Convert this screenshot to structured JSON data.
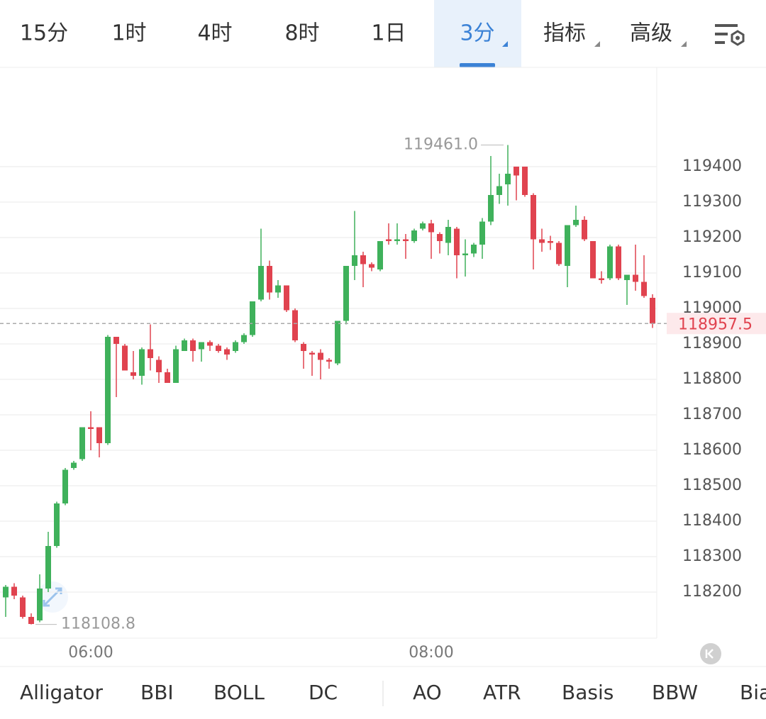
{
  "tabs": [
    "15分",
    "1时",
    "4时",
    "8时",
    "1日",
    "3分",
    "指标",
    "高级"
  ],
  "active_tab": 5,
  "indicators": [
    "Alligator",
    "BBI",
    "BOLL",
    "DC",
    "AO",
    "ATR",
    "Basis",
    "BBW",
    "Bias"
  ],
  "chart_data": {
    "type": "candlestick",
    "up_color": "#3fb15b",
    "down_color": "#e0434f",
    "grid": true,
    "categories": [
      null,
      null,
      null,
      null,
      null,
      null,
      null,
      null,
      null,
      null,
      "06:00",
      null,
      null,
      null,
      null,
      null,
      null,
      null,
      null,
      null,
      null,
      null,
      null,
      null,
      null,
      null,
      null,
      null,
      null,
      null,
      null,
      null,
      null,
      null,
      null,
      null,
      null,
      null,
      null,
      null,
      null,
      null,
      null,
      null,
      null,
      null,
      null,
      null,
      null,
      null,
      "08:00",
      null,
      null,
      null,
      null,
      null,
      null,
      null,
      null,
      null,
      null,
      null,
      null,
      null,
      null,
      null,
      null,
      null,
      null,
      null,
      null,
      null,
      null,
      null,
      null,
      null,
      null
    ],
    "open": [
      118185,
      118215,
      118185,
      118130,
      118120,
      118210,
      118330,
      118450,
      118550,
      118575,
      118665,
      118665,
      118620,
      118920,
      118895,
      118820,
      118810,
      118885,
      118855,
      118820,
      118790,
      118880,
      118910,
      118885,
      118905,
      118895,
      118885,
      118880,
      118905,
      118925,
      119025,
      119120,
      119045,
      119065,
      118995,
      118900,
      118875,
      118875,
      118855,
      118845,
      118965,
      119120,
      119150,
      119125,
      119110,
      119195,
      119190,
      119195,
      119190,
      119225,
      119240,
      119210,
      119185,
      119225,
      119150,
      119155,
      119180,
      119245,
      119320,
      119350,
      119400,
      119400,
      119320,
      119195,
      119190,
      119185,
      119120,
      119235,
      119250,
      119190,
      119085,
      119085,
      119175,
      119080,
      119095,
      119075,
      119030
    ],
    "high": [
      118220,
      118225,
      118190,
      118140,
      118250,
      118370,
      118455,
      118550,
      118570,
      118665,
      118710,
      118665,
      118925,
      118920,
      118900,
      118880,
      118890,
      118955,
      118865,
      118830,
      118895,
      118915,
      118915,
      118905,
      118910,
      118900,
      118890,
      118910,
      118930,
      119020,
      119225,
      119135,
      119080,
      119065,
      119000,
      118905,
      118880,
      118885,
      118860,
      118965,
      119120,
      119275,
      119160,
      119130,
      119190,
      119240,
      119240,
      119210,
      119225,
      119245,
      119250,
      119215,
      119250,
      119230,
      119195,
      119185,
      119255,
      119430,
      119380,
      119461,
      119400,
      119400,
      119325,
      119225,
      119205,
      119190,
      119235,
      119290,
      119260,
      119190,
      119105,
      119180,
      119180,
      119095,
      119180,
      119150,
      119040
    ],
    "low": [
      118130,
      118180,
      118125,
      118108.8,
      118115,
      118200,
      118325,
      118445,
      118545,
      118570,
      118600,
      118580,
      118615,
      118750,
      118825,
      118800,
      118785,
      118825,
      118790,
      118790,
      118790,
      118880,
      118850,
      118850,
      118880,
      118875,
      118855,
      118875,
      118900,
      118920,
      119020,
      119025,
      119030,
      118990,
      118905,
      118830,
      118810,
      118800,
      118830,
      118840,
      118955,
      119080,
      119060,
      119105,
      119105,
      119180,
      119180,
      119140,
      119185,
      119220,
      119140,
      119155,
      119150,
      119085,
      119090,
      119145,
      119140,
      119235,
      119295,
      119290,
      119305,
      119315,
      119110,
      119160,
      119165,
      119120,
      119060,
      119230,
      119190,
      119085,
      119070,
      119080,
      119080,
      119010,
      119050,
      119030,
      118945
    ],
    "close": [
      118215,
      118190,
      118130,
      118110,
      118210,
      118330,
      118450,
      118545,
      118565,
      118665,
      118660,
      118620,
      118920,
      118900,
      118825,
      118810,
      118885,
      118860,
      118820,
      118790,
      118885,
      118910,
      118880,
      118905,
      118895,
      118880,
      118870,
      118905,
      118925,
      119020,
      119120,
      119045,
      119065,
      118995,
      118910,
      118880,
      118870,
      118855,
      118850,
      118965,
      119120,
      119150,
      119125,
      119115,
      119190,
      119190,
      119195,
      119190,
      119220,
      119240,
      119215,
      119190,
      119230,
      119150,
      119155,
      119180,
      119245,
      119320,
      119345,
      119380,
      119375,
      119320,
      119195,
      119185,
      119185,
      119125,
      119235,
      119250,
      119195,
      119085,
      119080,
      119175,
      119085,
      119095,
      119075,
      119035,
      118957.5
    ],
    "max_annotation": {
      "value": 119461,
      "label": "119461.0"
    },
    "min_annotation": {
      "value": 118108.8,
      "label": "118108.8"
    },
    "last_price": 118957.5,
    "ylim": [
      118070,
      119680
    ],
    "yticks": [
      118200,
      118300,
      118400,
      118500,
      118600,
      118700,
      118800,
      118900,
      119000,
      119100,
      119200,
      119300,
      119400
    ]
  }
}
